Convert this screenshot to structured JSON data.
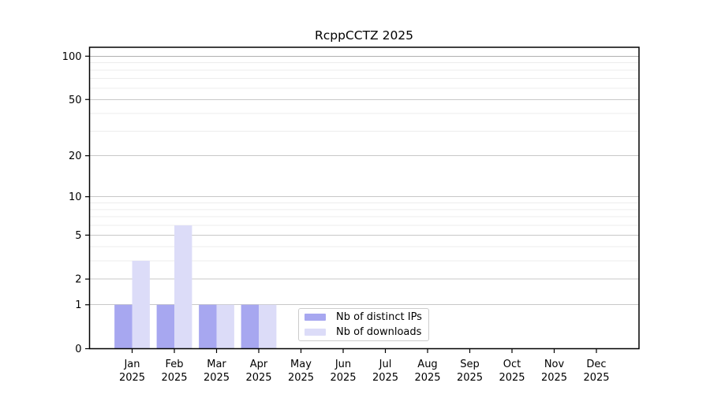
{
  "chart_data": {
    "type": "bar",
    "title": "RcppCCTZ 2025",
    "year": "2025",
    "months": [
      "Jan",
      "Feb",
      "Mar",
      "Apr",
      "May",
      "Jun",
      "Jul",
      "Aug",
      "Sep",
      "Oct",
      "Nov",
      "Dec"
    ],
    "series": [
      {
        "name": "Nb of distinct IPs",
        "color": "#a7a7f0",
        "values": [
          1,
          1,
          1,
          1,
          0,
          0,
          0,
          0,
          0,
          0,
          0,
          0
        ]
      },
      {
        "name": "Nb of downloads",
        "color": "#dcdcf8",
        "values": [
          3,
          6,
          1,
          1,
          0,
          0,
          0,
          0,
          0,
          0,
          0,
          0
        ]
      }
    ],
    "yscale": "log1p",
    "ylim": [
      0,
      115
    ],
    "yticks": [
      0,
      1,
      2,
      5,
      10,
      20,
      50,
      100
    ],
    "minor_gridlines": [
      2,
      3,
      4,
      5,
      6,
      7,
      8,
      9,
      10,
      20,
      30,
      40,
      50,
      60,
      70,
      80,
      90,
      100
    ],
    "grid": true,
    "legend_position": "inside lower center",
    "colors": {
      "axis": "#000000",
      "grid_minor": "#ededed",
      "grid_labeled": "#c8c8c8",
      "grid_top": "#b0b0b0",
      "background": "#ffffff"
    }
  }
}
